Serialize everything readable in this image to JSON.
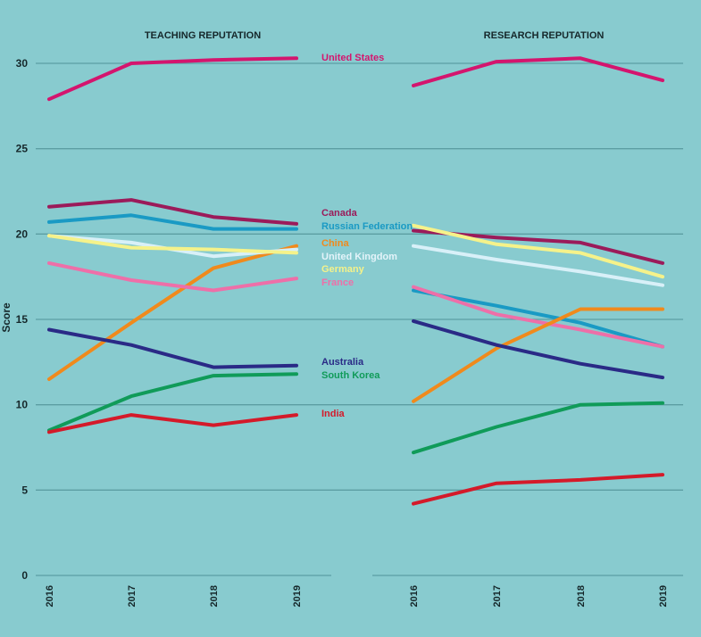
{
  "chart_data": [
    {
      "type": "line",
      "title": "TEACHING REPUTATION",
      "xlabel": "",
      "ylabel": "Score",
      "x": [
        "2016",
        "2017",
        "2018",
        "2019"
      ],
      "ylim": [
        0,
        30
      ],
      "yticks": [
        0,
        5,
        10,
        15,
        20,
        25,
        30
      ],
      "grid": true,
      "legend": "direct labels at right of panel",
      "series": [
        {
          "name": "United States",
          "color": "#d4156e",
          "values": [
            27.9,
            30.0,
            30.2,
            30.3
          ]
        },
        {
          "name": "Canada",
          "color": "#9b1b5a",
          "values": [
            21.6,
            22.0,
            21.0,
            20.6
          ]
        },
        {
          "name": "Russian Federation",
          "color": "#1a9ac4",
          "values": [
            20.7,
            21.1,
            20.3,
            20.3
          ]
        },
        {
          "name": "China",
          "color": "#f08a1c",
          "values": [
            11.5,
            14.8,
            18.0,
            19.3
          ]
        },
        {
          "name": "United Kingdom",
          "color": "#d8f0f8",
          "values": [
            19.9,
            19.5,
            18.7,
            19.1
          ]
        },
        {
          "name": "Germany",
          "color": "#f5f28a",
          "values": [
            19.9,
            19.2,
            19.1,
            18.9
          ]
        },
        {
          "name": "France",
          "color": "#ee6fa8",
          "values": [
            18.3,
            17.3,
            16.7,
            17.4
          ]
        },
        {
          "name": "Australia",
          "color": "#2a2a86",
          "values": [
            14.4,
            13.5,
            12.2,
            12.3
          ]
        },
        {
          "name": "South Korea",
          "color": "#109b59",
          "values": [
            8.5,
            10.5,
            11.7,
            11.8
          ]
        },
        {
          "name": "India",
          "color": "#d41a2a",
          "values": [
            8.4,
            9.4,
            8.8,
            9.4
          ]
        }
      ]
    },
    {
      "type": "line",
      "title": "RESEARCH REPUTATION",
      "xlabel": "",
      "ylabel": "",
      "x": [
        "2016",
        "2017",
        "2018",
        "2019"
      ],
      "ylim": [
        0,
        30
      ],
      "grid": true,
      "series": [
        {
          "name": "United States",
          "color": "#d4156e",
          "values": [
            28.7,
            30.1,
            30.3,
            29.0
          ]
        },
        {
          "name": "Canada",
          "color": "#9b1b5a",
          "values": [
            20.2,
            19.8,
            19.5,
            18.3
          ]
        },
        {
          "name": "Germany",
          "color": "#f5f28a",
          "values": [
            20.5,
            19.4,
            18.9,
            17.5
          ]
        },
        {
          "name": "United Kingdom",
          "color": "#d8f0f8",
          "values": [
            19.3,
            18.5,
            17.8,
            17.0
          ]
        },
        {
          "name": "Russian Federation",
          "color": "#1a9ac4",
          "values": [
            16.7,
            15.8,
            14.8,
            13.4
          ]
        },
        {
          "name": "France",
          "color": "#ee6fa8",
          "values": [
            16.9,
            15.3,
            14.4,
            13.4
          ]
        },
        {
          "name": "China",
          "color": "#f08a1c",
          "values": [
            10.2,
            13.3,
            15.6,
            15.6
          ]
        },
        {
          "name": "Australia",
          "color": "#2a2a86",
          "values": [
            14.9,
            13.5,
            12.4,
            11.6
          ]
        },
        {
          "name": "South Korea",
          "color": "#109b59",
          "values": [
            7.2,
            8.7,
            10.0,
            10.1
          ]
        },
        {
          "name": "India",
          "color": "#d41a2a",
          "values": [
            4.2,
            5.4,
            5.6,
            5.9
          ]
        }
      ]
    }
  ],
  "legend_labels": [
    {
      "name": "United States",
      "color": "#d4156e"
    },
    {
      "name": "Canada",
      "color": "#9b1b5a"
    },
    {
      "name": "Russian Federation",
      "color": "#1a9ac4"
    },
    {
      "name": "China",
      "color": "#f08a1c"
    },
    {
      "name": "United Kingdom",
      "color": "#e4f4fa"
    },
    {
      "name": "Germany",
      "color": "#f5f28a"
    },
    {
      "name": "France",
      "color": "#ee6fa8"
    },
    {
      "name": "Australia",
      "color": "#2a2a86"
    },
    {
      "name": "South Korea",
      "color": "#109b59"
    },
    {
      "name": "India",
      "color": "#d41a2a"
    }
  ]
}
